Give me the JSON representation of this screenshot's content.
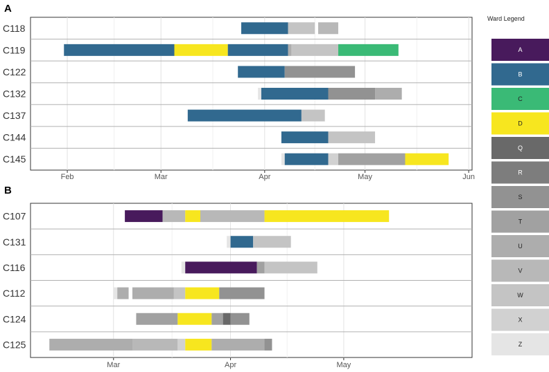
{
  "legend": {
    "title": "Ward Legend",
    "items": [
      {
        "label": "A",
        "color": "#481a5c"
      },
      {
        "label": "B",
        "color": "#31698f"
      },
      {
        "label": "C",
        "color": "#3aba76"
      },
      {
        "label": "D",
        "color": "#f7e61f"
      },
      {
        "label": "Q",
        "color": "#696969"
      },
      {
        "label": "R",
        "color": "#7d7d7d"
      },
      {
        "label": "S",
        "color": "#929292"
      },
      {
        "label": "T",
        "color": "#a1a1a1"
      },
      {
        "label": "U",
        "color": "#adadad"
      },
      {
        "label": "V",
        "color": "#b8b8b8"
      },
      {
        "label": "W",
        "color": "#c4c4c4"
      },
      {
        "label": "X",
        "color": "#d1d1d1"
      },
      {
        "label": "Z",
        "color": "#e5e5e5"
      }
    ]
  },
  "chart_data": [
    {
      "panel": "A",
      "type": "bar",
      "orientation": "horizontal-timeline",
      "x_ticks": [
        {
          "label": "Feb",
          "date": "2023-02-01"
        },
        {
          "label": "Mar",
          "date": "2023-03-01"
        },
        {
          "label": "Apr",
          "date": "2023-04-01"
        },
        {
          "label": "May",
          "date": "2023-05-01"
        },
        {
          "label": "Jun",
          "date": "2023-06-01"
        }
      ],
      "xlim": [
        "2023-01-21",
        "2023-06-02"
      ],
      "rows": [
        {
          "label": "C118",
          "segments": [
            {
              "ward": "B",
              "start": "2023-03-25",
              "end": "2023-04-08"
            },
            {
              "ward": "W",
              "start": "2023-04-08",
              "end": "2023-04-16"
            },
            {
              "ward": "V",
              "start": "2023-04-17",
              "end": "2023-04-23"
            }
          ]
        },
        {
          "label": "C119",
          "segments": [
            {
              "ward": "B",
              "start": "2023-01-31",
              "end": "2023-03-05"
            },
            {
              "ward": "D",
              "start": "2023-03-05",
              "end": "2023-03-21"
            },
            {
              "ward": "B",
              "start": "2023-03-21",
              "end": "2023-04-08"
            },
            {
              "ward": "U",
              "start": "2023-04-08",
              "end": "2023-04-09"
            },
            {
              "ward": "W",
              "start": "2023-04-09",
              "end": "2023-04-23"
            },
            {
              "ward": "C",
              "start": "2023-04-23",
              "end": "2023-05-11"
            }
          ]
        },
        {
          "label": "C122",
          "segments": [
            {
              "ward": "B",
              "start": "2023-03-24",
              "end": "2023-04-07"
            },
            {
              "ward": "S",
              "start": "2023-04-07",
              "end": "2023-04-28"
            }
          ]
        },
        {
          "label": "C132",
          "segments": [
            {
              "ward": "Z",
              "start": "2023-03-30",
              "end": "2023-03-31"
            },
            {
              "ward": "B",
              "start": "2023-03-31",
              "end": "2023-04-20"
            },
            {
              "ward": "S",
              "start": "2023-04-20",
              "end": "2023-05-04"
            },
            {
              "ward": "U",
              "start": "2023-05-04",
              "end": "2023-05-12"
            }
          ]
        },
        {
          "label": "C137",
          "segments": [
            {
              "ward": "B",
              "start": "2023-03-09",
              "end": "2023-04-12"
            },
            {
              "ward": "W",
              "start": "2023-04-12",
              "end": "2023-04-19"
            }
          ]
        },
        {
          "label": "C144",
          "segments": [
            {
              "ward": "B",
              "start": "2023-04-06",
              "end": "2023-04-20"
            },
            {
              "ward": "W",
              "start": "2023-04-20",
              "end": "2023-05-04"
            }
          ]
        },
        {
          "label": "C145",
          "segments": [
            {
              "ward": "Z",
              "start": "2023-04-06",
              "end": "2023-04-07"
            },
            {
              "ward": "B",
              "start": "2023-04-07",
              "end": "2023-04-20"
            },
            {
              "ward": "X",
              "start": "2023-04-20",
              "end": "2023-04-23"
            },
            {
              "ward": "T",
              "start": "2023-04-23",
              "end": "2023-05-13"
            },
            {
              "ward": "D",
              "start": "2023-05-13",
              "end": "2023-05-26"
            }
          ]
        }
      ]
    },
    {
      "panel": "B",
      "type": "bar",
      "orientation": "horizontal-timeline",
      "x_ticks": [
        {
          "label": "Mar",
          "date": "2023-03-01"
        },
        {
          "label": "Apr",
          "date": "2023-04-01"
        },
        {
          "label": "May",
          "date": "2023-05-01"
        }
      ],
      "xlim": [
        "2023-02-07",
        "2023-06-04"
      ],
      "rows": [
        {
          "label": "C107",
          "segments": [
            {
              "ward": "A",
              "start": "2023-03-04",
              "end": "2023-03-14"
            },
            {
              "ward": "V",
              "start": "2023-03-14",
              "end": "2023-03-20"
            },
            {
              "ward": "D",
              "start": "2023-03-20",
              "end": "2023-03-24"
            },
            {
              "ward": "V",
              "start": "2023-03-24",
              "end": "2023-04-10"
            },
            {
              "ward": "D",
              "start": "2023-04-10",
              "end": "2023-05-13"
            }
          ]
        },
        {
          "label": "C131",
          "segments": [
            {
              "ward": "Z",
              "start": "2023-03-31",
              "end": "2023-04-01"
            },
            {
              "ward": "B",
              "start": "2023-04-01",
              "end": "2023-04-07"
            },
            {
              "ward": "W",
              "start": "2023-04-07",
              "end": "2023-04-17"
            }
          ]
        },
        {
          "label": "C116",
          "segments": [
            {
              "ward": "Z",
              "start": "2023-03-19",
              "end": "2023-03-20"
            },
            {
              "ward": "A",
              "start": "2023-03-20",
              "end": "2023-04-08"
            },
            {
              "ward": "T",
              "start": "2023-04-08",
              "end": "2023-04-10"
            },
            {
              "ward": "W",
              "start": "2023-04-10",
              "end": "2023-04-24"
            }
          ]
        },
        {
          "label": "C112",
          "segments": [
            {
              "ward": "Z",
              "start": "2023-03-01",
              "end": "2023-03-02"
            },
            {
              "ward": "U",
              "start": "2023-03-02",
              "end": "2023-03-05"
            },
            {
              "ward": "U",
              "start": "2023-03-06",
              "end": "2023-03-17"
            },
            {
              "ward": "W",
              "start": "2023-03-17",
              "end": "2023-03-20"
            },
            {
              "ward": "D",
              "start": "2023-03-20",
              "end": "2023-03-29"
            },
            {
              "ward": "S",
              "start": "2023-03-29",
              "end": "2023-04-10"
            }
          ]
        },
        {
          "label": "C124",
          "segments": [
            {
              "ward": "T",
              "start": "2023-03-07",
              "end": "2023-03-18"
            },
            {
              "ward": "D",
              "start": "2023-03-18",
              "end": "2023-03-27"
            },
            {
              "ward": "T",
              "start": "2023-03-27",
              "end": "2023-03-30"
            },
            {
              "ward": "Q",
              "start": "2023-03-30",
              "end": "2023-04-01"
            },
            {
              "ward": "S",
              "start": "2023-04-01",
              "end": "2023-04-06"
            }
          ]
        },
        {
          "label": "C125",
          "segments": [
            {
              "ward": "U",
              "start": "2023-02-12",
              "end": "2023-03-06"
            },
            {
              "ward": "V",
              "start": "2023-03-06",
              "end": "2023-03-18"
            },
            {
              "ward": "X",
              "start": "2023-03-18",
              "end": "2023-03-20"
            },
            {
              "ward": "D",
              "start": "2023-03-20",
              "end": "2023-03-27"
            },
            {
              "ward": "U",
              "start": "2023-03-27",
              "end": "2023-04-10"
            },
            {
              "ward": "S",
              "start": "2023-04-10",
              "end": "2023-04-12"
            }
          ]
        }
      ]
    }
  ]
}
